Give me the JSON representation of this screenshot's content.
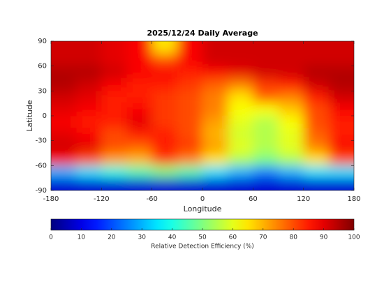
{
  "chart_data": {
    "type": "heatmap",
    "title": "2025/12/24 Daily Average",
    "xlabel": "Longitude",
    "ylabel": "Latitude",
    "colormap": "jet",
    "xbins": [
      -180,
      -150,
      -120,
      -90,
      -60,
      -30,
      0,
      30,
      60,
      90,
      120,
      150,
      180
    ],
    "ybins": [
      90,
      75,
      60,
      45,
      30,
      15,
      0,
      -15,
      -30,
      -45,
      -60,
      -75,
      -90
    ],
    "values": [
      [
        92,
        92,
        90,
        88,
        65,
        88,
        92,
        92,
        92,
        92,
        92,
        92
      ],
      [
        92,
        92,
        90,
        88,
        80,
        88,
        92,
        92,
        92,
        92,
        92,
        92
      ],
      [
        95,
        95,
        92,
        88,
        88,
        85,
        88,
        90,
        92,
        92,
        95,
        95
      ],
      [
        95,
        92,
        88,
        85,
        85,
        82,
        78,
        75,
        82,
        85,
        92,
        95
      ],
      [
        92,
        90,
        85,
        85,
        82,
        80,
        75,
        65,
        78,
        75,
        85,
        92
      ],
      [
        90,
        88,
        85,
        88,
        82,
        80,
        75,
        62,
        62,
        68,
        80,
        88
      ],
      [
        88,
        85,
        85,
        90,
        82,
        80,
        72,
        60,
        55,
        62,
        80,
        85
      ],
      [
        90,
        88,
        80,
        85,
        85,
        80,
        70,
        58,
        55,
        60,
        78,
        85
      ],
      [
        92,
        90,
        80,
        78,
        85,
        82,
        72,
        60,
        55,
        60,
        75,
        88
      ],
      [
        88,
        80,
        72,
        70,
        82,
        75,
        65,
        55,
        50,
        55,
        65,
        80
      ],
      [
        30,
        35,
        40,
        45,
        50,
        45,
        35,
        30,
        25,
        30,
        35,
        35
      ],
      [
        8,
        8,
        8,
        8,
        8,
        8,
        8,
        8,
        8,
        8,
        8,
        8
      ]
    ],
    "xlim": [
      -180,
      180
    ],
    "ylim": [
      -90,
      90
    ],
    "xticks": [
      -180,
      -120,
      -60,
      0,
      60,
      120,
      180
    ],
    "yticks": [
      90,
      60,
      30,
      0,
      -30,
      -60,
      -90
    ],
    "colorbar": {
      "label": "Relative Detection Efficiency (%)",
      "lim": [
        0,
        100
      ],
      "ticks": [
        0,
        10,
        20,
        30,
        40,
        50,
        60,
        70,
        80,
        90,
        100
      ]
    }
  }
}
